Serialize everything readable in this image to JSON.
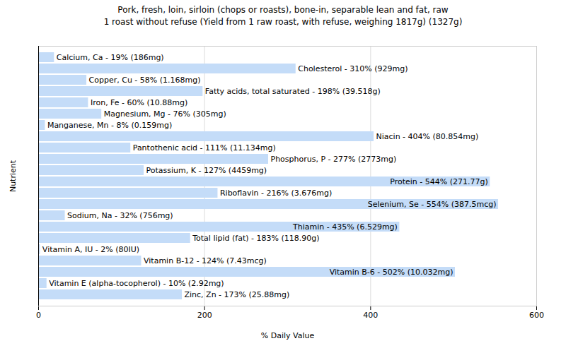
{
  "chart_data": {
    "type": "bar",
    "orientation": "horizontal",
    "title": "Pork, fresh, loin, sirloin (chops or roasts), bone-in, separable lean and fat, raw",
    "subtitle": "1 roast without refuse (Yield from 1 raw roast, with refuse, weighing 1817g) (1327g)",
    "x_label": "% Daily Value",
    "y_label": "Nutrient",
    "categories": [
      "Calcium, Ca",
      "Cholesterol",
      "Copper, Cu",
      "Fatty acids, total saturated",
      "Iron, Fe",
      "Magnesium, Mg",
      "Manganese, Mn",
      "Niacin",
      "Pantothenic acid",
      "Phosphorus, P",
      "Potassium, K",
      "Protein",
      "Riboflavin",
      "Selenium, Se",
      "Sodium, Na",
      "Thiamin",
      "Total lipid (fat)",
      "Vitamin A, IU",
      "Vitamin B-12",
      "Vitamin B-6",
      "Vitamin E (alpha-tocopherol)",
      "Zinc, Zn"
    ],
    "values": [
      19,
      310,
      58,
      198,
      60,
      76,
      8,
      404,
      111,
      277,
      127,
      544,
      216,
      554,
      32,
      435,
      183,
      2,
      124,
      502,
      10,
      173
    ],
    "value_labels": [
      "Calcium, Ca - 19% (186mg)",
      "Cholesterol - 310% (929mg)",
      "Copper, Cu - 58% (1.168mg)",
      "Fatty acids, total saturated - 198% (39.518g)",
      "Iron, Fe - 60% (10.88mg)",
      "Magnesium, Mg - 76% (305mg)",
      "Manganese, Mn - 8% (0.159mg)",
      "Niacin - 404% (80.854mg)",
      "Pantothenic acid - 111% (11.134mg)",
      "Phosphorus, P - 277% (2773mg)",
      "Potassium, K - 127% (4459mg)",
      "Protein - 544% (271.77g)",
      "Riboflavin - 216% (3.676mg)",
      "Selenium, Se - 554% (387.5mcg)",
      "Sodium, Na - 32% (756mg)",
      "Thiamin - 435% (6.529mg)",
      "Total lipid (fat) - 183% (118.90g)",
      "Vitamin A, IU - 2% (80IU)",
      "Vitamin B-12 - 124% (7.43mcg)",
      "Vitamin B-6 - 502% (10.032mg)",
      "Vitamin E (alpha-tocopherol) - 10% (2.92mg)",
      "Zinc, Zn - 173% (25.88mg)"
    ],
    "data_labels": true,
    "color": "#c4dcf8",
    "xlim": [
      0,
      600
    ],
    "xticks": [
      0,
      200,
      400,
      600
    ],
    "grid": true,
    "tick_labels": "x"
  }
}
